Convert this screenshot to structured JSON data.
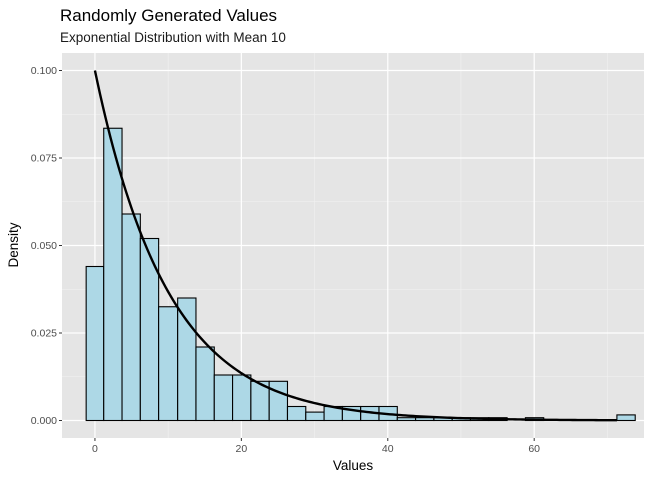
{
  "chart_data": {
    "type": "histogram",
    "title": "Randomly Generated Values",
    "subtitle": "Exponential Distribution with Mean 10",
    "xlabel": "Values",
    "ylabel": "Density",
    "xlim": [
      -4.5,
      75
    ],
    "ylim": [
      -0.005,
      0.105
    ],
    "x_ticks": [
      0,
      20,
      40,
      60
    ],
    "x_tick_labels": [
      "0",
      "20",
      "40",
      "60"
    ],
    "y_ticks": [
      0,
      0.025,
      0.05,
      0.075,
      0.1
    ],
    "y_tick_labels": [
      "0.000",
      "0.025",
      "0.050",
      "0.075",
      "0.100"
    ],
    "grid": true,
    "bar_fill": "#add8e6",
    "bar_stroke": "#000000",
    "panel_background": "#e5e5e5",
    "curve_color": "#000000",
    "bins": [
      {
        "x0": -1.2,
        "x1": 1.2,
        "density": 0.044
      },
      {
        "x0": 1.2,
        "x1": 3.7,
        "density": 0.0835
      },
      {
        "x0": 3.7,
        "x1": 6.2,
        "density": 0.059
      },
      {
        "x0": 6.2,
        "x1": 8.7,
        "density": 0.052
      },
      {
        "x0": 8.7,
        "x1": 11.3,
        "density": 0.0325
      },
      {
        "x0": 11.3,
        "x1": 13.8,
        "density": 0.035
      },
      {
        "x0": 13.8,
        "x1": 16.3,
        "density": 0.021
      },
      {
        "x0": 16.3,
        "x1": 18.8,
        "density": 0.013
      },
      {
        "x0": 18.8,
        "x1": 21.3,
        "density": 0.013
      },
      {
        "x0": 21.3,
        "x1": 23.8,
        "density": 0.0112
      },
      {
        "x0": 23.8,
        "x1": 26.3,
        "density": 0.0112
      },
      {
        "x0": 26.3,
        "x1": 28.8,
        "density": 0.004
      },
      {
        "x0": 28.8,
        "x1": 31.3,
        "density": 0.0024
      },
      {
        "x0": 31.3,
        "x1": 33.8,
        "density": 0.004
      },
      {
        "x0": 33.8,
        "x1": 36.3,
        "density": 0.004
      },
      {
        "x0": 36.3,
        "x1": 38.8,
        "density": 0.004
      },
      {
        "x0": 38.8,
        "x1": 41.3,
        "density": 0.004
      },
      {
        "x0": 41.3,
        "x1": 43.8,
        "density": 0.0008
      },
      {
        "x0": 43.8,
        "x1": 46.3,
        "density": 0.0008
      },
      {
        "x0": 46.3,
        "x1": 48.8,
        "density": 0.0008
      },
      {
        "x0": 48.8,
        "x1": 51.3,
        "density": 0.0008
      },
      {
        "x0": 51.3,
        "x1": 53.8,
        "density": 0.0008
      },
      {
        "x0": 53.8,
        "x1": 56.3,
        "density": 0.0008
      },
      {
        "x0": 56.3,
        "x1": 58.8,
        "density": 0.0
      },
      {
        "x0": 58.8,
        "x1": 61.3,
        "density": 0.0008
      },
      {
        "x0": 61.3,
        "x1": 63.8,
        "density": 0.0
      },
      {
        "x0": 63.8,
        "x1": 66.3,
        "density": 0.0
      },
      {
        "x0": 66.3,
        "x1": 68.8,
        "density": 0.0
      },
      {
        "x0": 68.8,
        "x1": 71.3,
        "density": 0.0
      },
      {
        "x0": 71.3,
        "x1": 73.8,
        "density": 0.0016
      }
    ],
    "curve": {
      "distribution": "exponential",
      "rate": 0.1,
      "x_range": [
        0,
        71.3
      ]
    }
  }
}
